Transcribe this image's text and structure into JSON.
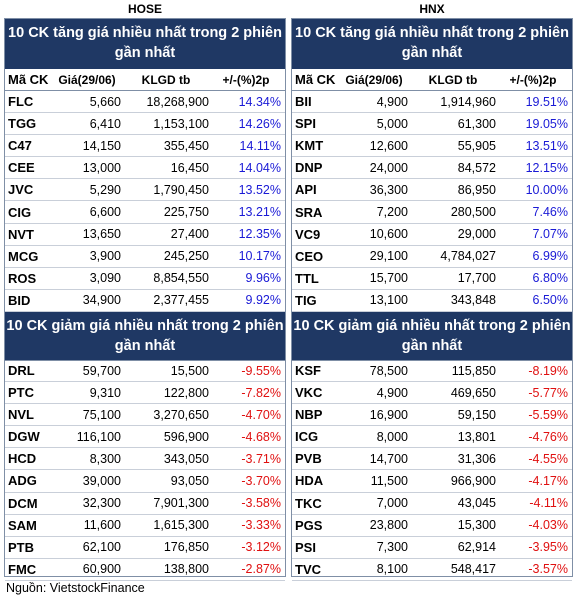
{
  "exchanges": {
    "left": "HOSE",
    "right": "HNX"
  },
  "columns": {
    "symbol": "Mã CK",
    "price": "Giá(29/06)",
    "volume": "KLGD tb",
    "change": "+/-(%)2p"
  },
  "hose": {
    "gainers_title": "10 CK tăng giá nhiều nhất trong 2 phiên gần nhất",
    "gainers": [
      {
        "sym": "FLC",
        "price": "5,660",
        "vol": "18,268,900",
        "pct": "14.34%"
      },
      {
        "sym": "TGG",
        "price": "6,410",
        "vol": "1,153,100",
        "pct": "14.26%"
      },
      {
        "sym": "C47",
        "price": "14,150",
        "vol": "355,450",
        "pct": "14.11%"
      },
      {
        "sym": "CEE",
        "price": "13,000",
        "vol": "16,450",
        "pct": "14.04%"
      },
      {
        "sym": "JVC",
        "price": "5,290",
        "vol": "1,790,450",
        "pct": "13.52%"
      },
      {
        "sym": "CIG",
        "price": "6,600",
        "vol": "225,750",
        "pct": "13.21%"
      },
      {
        "sym": "NVT",
        "price": "13,650",
        "vol": "27,400",
        "pct": "12.35%"
      },
      {
        "sym": "MCG",
        "price": "3,900",
        "vol": "245,250",
        "pct": "10.17%"
      },
      {
        "sym": "ROS",
        "price": "3,090",
        "vol": "8,854,550",
        "pct": "9.96%"
      },
      {
        "sym": "BID",
        "price": "34,900",
        "vol": "2,377,455",
        "pct": "9.92%"
      }
    ],
    "losers_title": "10 CK giảm giá nhiều nhất trong 2 phiên gần nhất",
    "losers": [
      {
        "sym": "DRL",
        "price": "59,700",
        "vol": "15,500",
        "pct": "-9.55%"
      },
      {
        "sym": "PTC",
        "price": "9,310",
        "vol": "122,800",
        "pct": "-7.82%"
      },
      {
        "sym": "NVL",
        "price": "75,100",
        "vol": "3,270,650",
        "pct": "-4.70%"
      },
      {
        "sym": "DGW",
        "price": "116,100",
        "vol": "596,900",
        "pct": "-4.68%"
      },
      {
        "sym": "HCD",
        "price": "8,300",
        "vol": "343,050",
        "pct": "-3.71%"
      },
      {
        "sym": "ADG",
        "price": "39,000",
        "vol": "93,050",
        "pct": "-3.70%"
      },
      {
        "sym": "DCM",
        "price": "32,300",
        "vol": "7,901,300",
        "pct": "-3.58%"
      },
      {
        "sym": "SAM",
        "price": "11,600",
        "vol": "1,615,300",
        "pct": "-3.33%"
      },
      {
        "sym": "PTB",
        "price": "62,100",
        "vol": "176,850",
        "pct": "-3.12%"
      },
      {
        "sym": "FMC",
        "price": "60,900",
        "vol": "138,800",
        "pct": "-2.87%"
      }
    ]
  },
  "hnx": {
    "gainers_title": "10 CK tăng giá nhiều nhất trong 2 phiên gần nhất",
    "gainers": [
      {
        "sym": "BII",
        "price": "4,900",
        "vol": "1,914,960",
        "pct": "19.51%"
      },
      {
        "sym": "SPI",
        "price": "5,000",
        "vol": "61,300",
        "pct": "19.05%"
      },
      {
        "sym": "KMT",
        "price": "12,600",
        "vol": "55,905",
        "pct": "13.51%"
      },
      {
        "sym": "DNP",
        "price": "24,000",
        "vol": "84,572",
        "pct": "12.15%"
      },
      {
        "sym": "API",
        "price": "36,300",
        "vol": "86,950",
        "pct": "10.00%"
      },
      {
        "sym": "SRA",
        "price": "7,200",
        "vol": "280,500",
        "pct": "7.46%"
      },
      {
        "sym": "VC9",
        "price": "10,600",
        "vol": "29,000",
        "pct": "7.07%"
      },
      {
        "sym": "CEO",
        "price": "29,100",
        "vol": "4,784,027",
        "pct": "6.99%"
      },
      {
        "sym": "TTL",
        "price": "15,700",
        "vol": "17,700",
        "pct": "6.80%"
      },
      {
        "sym": "TIG",
        "price": "13,100",
        "vol": "343,848",
        "pct": "6.50%"
      }
    ],
    "losers_title": "10 CK giảm giá nhiều nhất trong 2 phiên gần nhất",
    "losers": [
      {
        "sym": "KSF",
        "price": "78,500",
        "vol": "115,850",
        "pct": "-8.19%"
      },
      {
        "sym": "VKC",
        "price": "4,900",
        "vol": "469,650",
        "pct": "-5.77%"
      },
      {
        "sym": "NBP",
        "price": "16,900",
        "vol": "59,150",
        "pct": "-5.59%"
      },
      {
        "sym": "ICG",
        "price": "8,000",
        "vol": "13,801",
        "pct": "-4.76%"
      },
      {
        "sym": "PVB",
        "price": "14,700",
        "vol": "31,306",
        "pct": "-4.55%"
      },
      {
        "sym": "HDA",
        "price": "11,500",
        "vol": "966,900",
        "pct": "-4.17%"
      },
      {
        "sym": "TKC",
        "price": "7,000",
        "vol": "43,045",
        "pct": "-4.11%"
      },
      {
        "sym": "PGS",
        "price": "23,800",
        "vol": "15,300",
        "pct": "-4.03%"
      },
      {
        "sym": "PSI",
        "price": "7,300",
        "vol": "62,914",
        "pct": "-3.95%"
      },
      {
        "sym": "TVC",
        "price": "8,100",
        "vol": "548,417",
        "pct": "-3.57%"
      }
    ]
  },
  "source": "Nguồn: VietstockFinance"
}
